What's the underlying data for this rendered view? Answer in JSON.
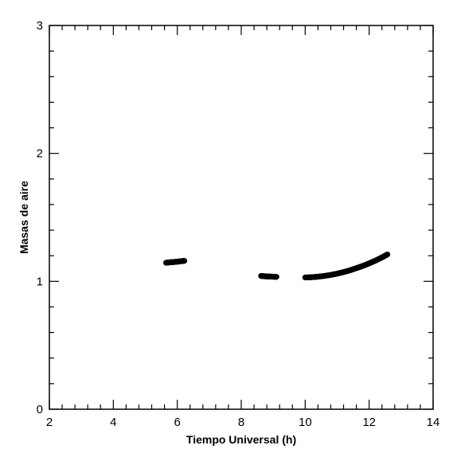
{
  "chart_data": {
    "type": "scatter",
    "title": "",
    "xlabel": "Tiempo Universal (h)",
    "ylabel": "Masas de aire",
    "xlim": [
      2,
      14
    ],
    "ylim": [
      0,
      3
    ],
    "xticks": [
      2,
      4,
      6,
      8,
      10,
      12,
      14
    ],
    "yticks": [
      0,
      1,
      2,
      3
    ],
    "x_minor_step": 0.4,
    "y_minor_step": 0.2,
    "grid": false,
    "legend": "none",
    "marker_color": "#000000",
    "segments": [
      {
        "x": [
          5.65,
          5.75,
          5.85,
          5.95,
          6.05,
          6.15,
          6.22
        ],
        "y": [
          1.145,
          1.148,
          1.15,
          1.152,
          1.155,
          1.158,
          1.16
        ]
      },
      {
        "x": [
          8.62,
          8.7,
          8.8,
          8.9,
          9.0,
          9.1
        ],
        "y": [
          1.042,
          1.04,
          1.038,
          1.037,
          1.036,
          1.035
        ]
      },
      {
        "x": [
          10.0,
          10.2,
          10.4,
          10.6,
          10.8,
          11.0,
          11.2,
          11.4,
          11.6,
          11.8,
          12.0,
          12.2,
          12.4,
          12.57
        ],
        "y": [
          1.03,
          1.032,
          1.036,
          1.042,
          1.05,
          1.06,
          1.072,
          1.086,
          1.103,
          1.12,
          1.14,
          1.162,
          1.187,
          1.21
        ]
      }
    ]
  }
}
